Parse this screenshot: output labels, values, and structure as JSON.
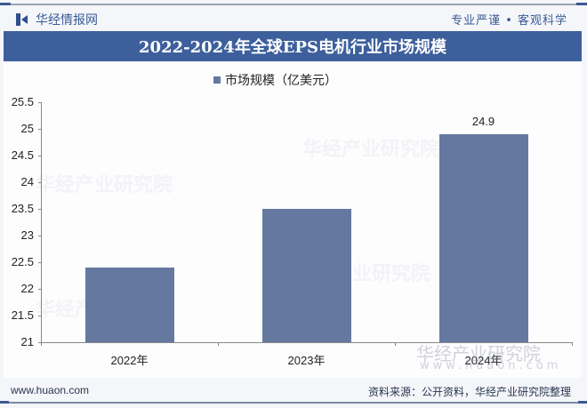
{
  "header": {
    "brand": "华经情报网",
    "slogan": "专业严谨 • 客观科学",
    "title": "2022-2024年全球EPS电机行业市场规模"
  },
  "legend": {
    "label": "市场规模（亿美元）",
    "color": "#6579a0"
  },
  "watermark": {
    "text": "华经产业研究院",
    "url": "www.huaon.com"
  },
  "footer": {
    "url": "www.huaon.com",
    "source": "资料来源：公开资料，华经产业研究院整理"
  },
  "chart_data": {
    "type": "bar",
    "title": "2022-2024年全球EPS电机行业市场规模",
    "categories": [
      "2022年",
      "2023年",
      "2024年"
    ],
    "series": [
      {
        "name": "市场规模（亿美元）",
        "values": [
          22.4,
          23.5,
          24.9
        ],
        "color": "#6579a0"
      }
    ],
    "data_labels": [
      "",
      "",
      "24.9"
    ],
    "xlabel": "",
    "ylabel": "",
    "ylim": [
      21,
      25.5
    ],
    "yticks": [
      "25.5",
      "25",
      "24.5",
      "24",
      "23.5",
      "23",
      "22.5",
      "22",
      "21.5",
      "21"
    ],
    "grid": false,
    "legend_position": "top"
  }
}
